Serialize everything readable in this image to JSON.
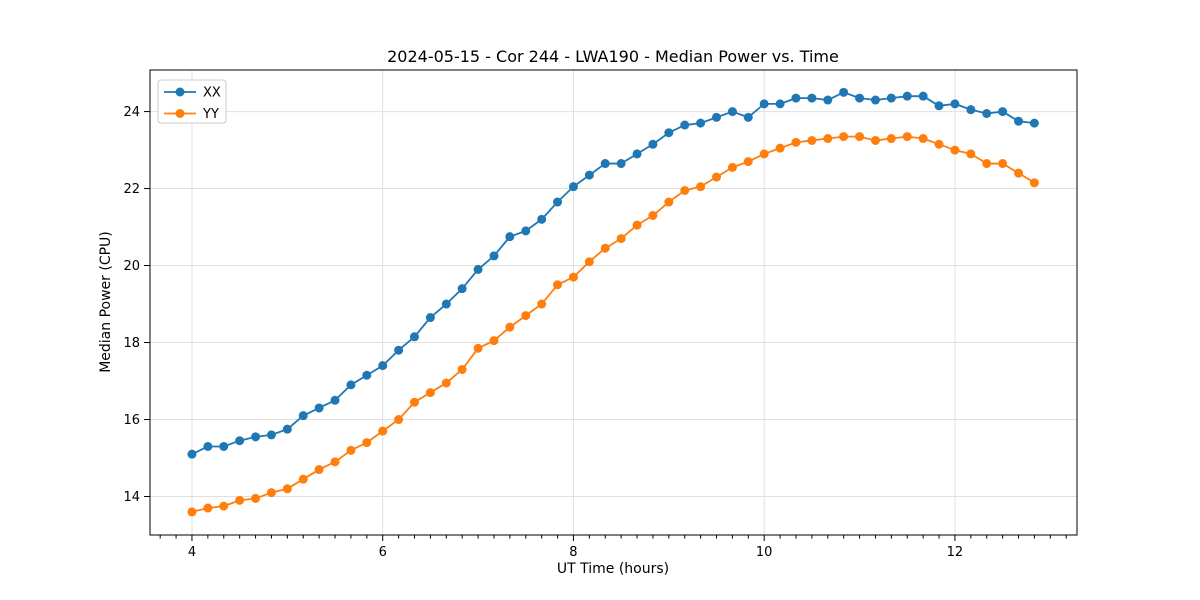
{
  "chart_data": {
    "type": "line",
    "title": "2024-05-15 - Cor 244 - LWA190 - Median Power vs. Time",
    "xlabel": "UT Time (hours)",
    "ylabel": "Median Power (CPU)",
    "xlim": [
      3.56,
      13.28
    ],
    "ylim": [
      13.0,
      25.08
    ],
    "grid": true,
    "legend_position": "upper-left",
    "marker": "circle",
    "x_major_ticks": [
      4,
      6,
      8,
      10,
      12
    ],
    "x_tick_labels": [
      "4",
      "6",
      "8",
      "10",
      "12"
    ],
    "x_minor_tick_step": 0.16667,
    "y_major_ticks": [
      14,
      16,
      18,
      20,
      22,
      24
    ],
    "y_tick_labels": [
      "14",
      "16",
      "18",
      "20",
      "22",
      "24"
    ],
    "colors": {
      "grid": "#e0e0e0",
      "spine": "#000000",
      "background": "#ffffff"
    },
    "x": [
      4.0,
      4.167,
      4.333,
      4.5,
      4.667,
      4.833,
      5.0,
      5.167,
      5.333,
      5.5,
      5.667,
      5.833,
      6.0,
      6.167,
      6.333,
      6.5,
      6.667,
      6.833,
      7.0,
      7.167,
      7.333,
      7.5,
      7.667,
      7.833,
      8.0,
      8.167,
      8.333,
      8.5,
      8.667,
      8.833,
      9.0,
      9.167,
      9.333,
      9.5,
      9.667,
      9.833,
      10.0,
      10.167,
      10.333,
      10.5,
      10.667,
      10.833,
      11.0,
      11.167,
      11.333,
      11.5,
      11.667,
      11.833,
      12.0,
      12.167,
      12.333,
      12.5,
      12.667,
      12.833
    ],
    "series": [
      {
        "name": "XX",
        "color": "#1f77b4",
        "values": [
          15.1,
          15.3,
          15.3,
          15.45,
          15.55,
          15.6,
          15.75,
          16.1,
          16.3,
          16.5,
          16.9,
          17.15,
          17.4,
          17.8,
          18.15,
          18.65,
          19.0,
          19.4,
          19.9,
          20.25,
          20.75,
          20.9,
          21.2,
          21.65,
          22.05,
          22.35,
          22.65,
          22.65,
          22.9,
          23.15,
          23.45,
          23.65,
          23.7,
          23.85,
          24.0,
          23.85,
          24.2,
          24.2,
          24.35,
          24.35,
          24.3,
          24.5,
          24.35,
          24.3,
          24.35,
          24.4,
          24.4,
          24.15,
          24.2,
          24.05,
          23.95,
          24.0,
          23.75,
          23.7
        ]
      },
      {
        "name": "YY",
        "color": "#ff7f0e",
        "values": [
          13.6,
          13.7,
          13.75,
          13.9,
          13.95,
          14.1,
          14.2,
          14.45,
          14.7,
          14.9,
          15.2,
          15.4,
          15.7,
          16.0,
          16.45,
          16.7,
          16.95,
          17.3,
          17.85,
          18.05,
          18.4,
          18.7,
          19.0,
          19.5,
          19.7,
          20.1,
          20.45,
          20.7,
          21.05,
          21.3,
          21.65,
          21.95,
          22.05,
          22.3,
          22.55,
          22.7,
          22.9,
          23.05,
          23.2,
          23.25,
          23.3,
          23.35,
          23.35,
          23.25,
          23.3,
          23.35,
          23.3,
          23.15,
          23.0,
          22.9,
          22.65,
          22.65,
          22.4,
          22.15
        ]
      }
    ]
  }
}
